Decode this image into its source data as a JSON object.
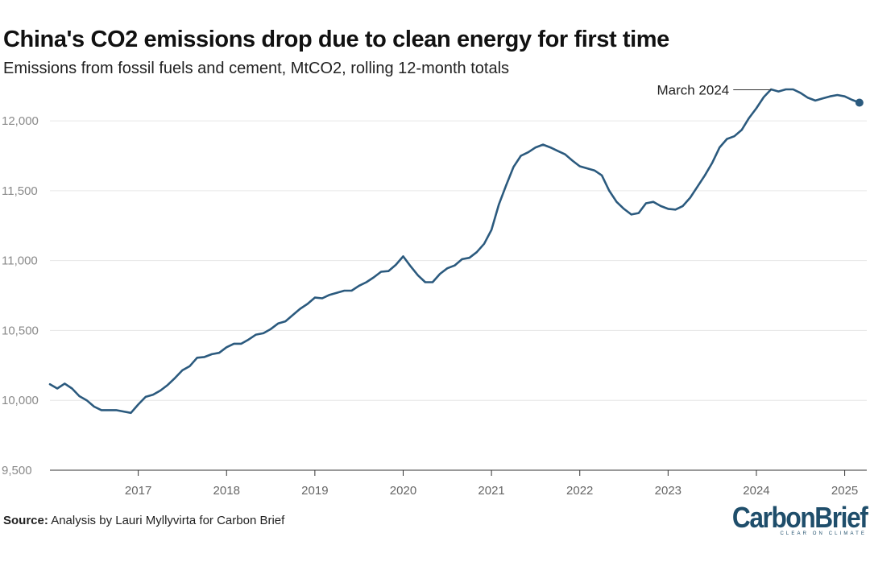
{
  "header": {
    "title": "China's CO2 emissions drop due to clean energy for first time",
    "subtitle": "Emissions from fossil fuels and cement, MtCO2, rolling 12-month totals"
  },
  "footer": {
    "source_label": "Source:",
    "source_text": " Analysis by Lauri Myllyvirta for Carbon Brief",
    "brand_name": "CarbonBrief",
    "brand_tagline": "CLEAR ON CLIMATE"
  },
  "colors": {
    "line": "#2b5a7e",
    "grid": "#e6e6e6",
    "brand": "#1f4e6b"
  },
  "chart_data": {
    "type": "line",
    "title": "China's CO2 emissions drop due to clean energy for first time",
    "subtitle": "Emissions from fossil fuels and cement, MtCO2, rolling 12-month totals",
    "xlabel": "",
    "ylabel": "",
    "ylim": [
      9500,
      12300
    ],
    "xlim": [
      "2016-01",
      "2025-04"
    ],
    "grid": true,
    "legend": false,
    "y_ticks": [
      "9,500",
      "10,000",
      "10,500",
      "11,000",
      "11,500",
      "12,000"
    ],
    "x_ticks": [
      "2017",
      "2018",
      "2019",
      "2020",
      "2021",
      "2022",
      "2023",
      "2024",
      "2025"
    ],
    "annotation": {
      "text": "March 2024",
      "date": "2024-03"
    },
    "end_marker": true,
    "series": [
      {
        "dates": [
          "2016-01",
          "2016-02",
          "2016-03",
          "2016-04",
          "2016-05",
          "2016-06",
          "2016-07",
          "2016-08",
          "2016-09",
          "2016-10",
          "2016-11",
          "2016-12",
          "2017-01",
          "2017-02",
          "2017-03",
          "2017-04",
          "2017-05",
          "2017-06",
          "2017-07",
          "2017-08",
          "2017-09",
          "2017-10",
          "2017-11",
          "2017-12",
          "2018-01",
          "2018-02",
          "2018-03",
          "2018-04",
          "2018-05",
          "2018-06",
          "2018-07",
          "2018-08",
          "2018-09",
          "2018-10",
          "2018-11",
          "2018-12",
          "2019-01",
          "2019-02",
          "2019-03",
          "2019-04",
          "2019-05",
          "2019-06",
          "2019-07",
          "2019-08",
          "2019-09",
          "2019-10",
          "2019-11",
          "2019-12",
          "2020-01",
          "2020-02",
          "2020-03",
          "2020-04",
          "2020-05",
          "2020-06",
          "2020-07",
          "2020-08",
          "2020-09",
          "2020-10",
          "2020-11",
          "2020-12",
          "2021-01",
          "2021-02",
          "2021-03",
          "2021-04",
          "2021-05",
          "2021-06",
          "2021-07",
          "2021-08",
          "2021-09",
          "2021-10",
          "2021-11",
          "2021-12",
          "2022-01",
          "2022-02",
          "2022-03",
          "2022-04",
          "2022-05",
          "2022-06",
          "2022-07",
          "2022-08",
          "2022-09",
          "2022-10",
          "2022-11",
          "2022-12",
          "2023-01",
          "2023-02",
          "2023-03",
          "2023-04",
          "2023-05",
          "2023-06",
          "2023-07",
          "2023-08",
          "2023-09",
          "2023-10",
          "2023-11",
          "2023-12",
          "2024-01",
          "2024-02",
          "2024-03",
          "2024-04",
          "2024-05",
          "2024-06",
          "2024-07",
          "2024-08",
          "2024-09",
          "2024-10",
          "2024-11",
          "2024-12",
          "2025-01",
          "2025-02",
          "2025-03"
        ],
        "values": [
          10115,
          10085,
          10120,
          10085,
          10030,
          10000,
          9955,
          9930,
          9930,
          9930,
          9920,
          9910,
          9970,
          10025,
          10040,
          10070,
          10110,
          10160,
          10215,
          10245,
          10305,
          10310,
          10330,
          10340,
          10380,
          10405,
          10405,
          10435,
          10470,
          10480,
          10510,
          10550,
          10565,
          10610,
          10655,
          10690,
          10735,
          10730,
          10755,
          10770,
          10785,
          10785,
          10820,
          10845,
          10880,
          10920,
          10925,
          10970,
          11030,
          10960,
          10895,
          10845,
          10845,
          10905,
          10945,
          10965,
          11010,
          11020,
          11060,
          11120,
          11220,
          11400,
          11540,
          11670,
          11750,
          11775,
          11810,
          11830,
          11810,
          11785,
          11760,
          11715,
          11675,
          11660,
          11645,
          11610,
          11500,
          11420,
          11370,
          11330,
          11340,
          11410,
          11420,
          11390,
          11370,
          11365,
          11390,
          11450,
          11530,
          11610,
          11700,
          11810,
          11870,
          11890,
          11935,
          12020,
          12090,
          12170,
          12225,
          12210,
          12225,
          12225,
          12200,
          12165,
          12145,
          12160,
          12175,
          12185,
          12175,
          12150,
          12130
        ]
      }
    ]
  }
}
